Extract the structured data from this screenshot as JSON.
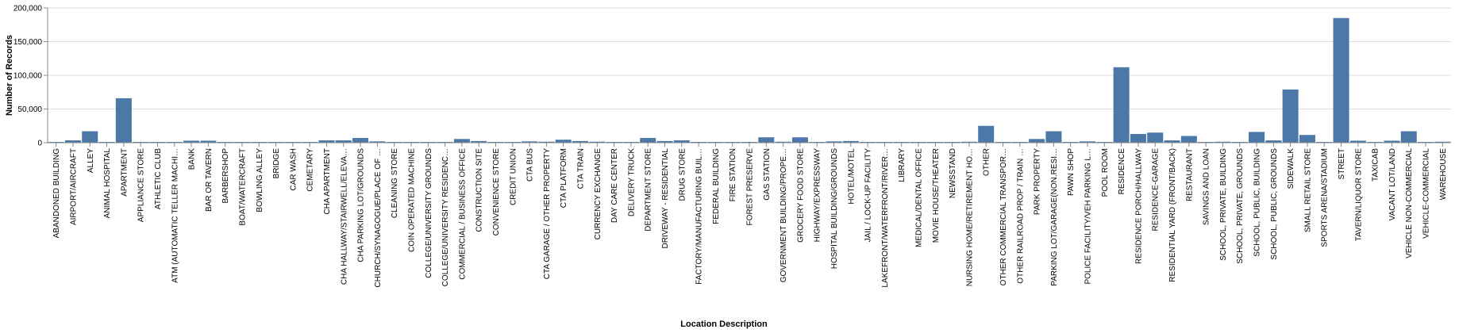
{
  "chart_data": {
    "type": "bar",
    "xlabel": "Location Description",
    "ylabel": "Number of Records",
    "ylim": [
      0,
      200000
    ],
    "yticks": [
      0,
      50000,
      100000,
      150000,
      200000
    ],
    "ytick_labels": [
      "0",
      "50,000",
      "100,000",
      "150,000",
      "200,000"
    ],
    "grid": true,
    "bar_color": "#4c78a8",
    "categories": [
      "ABANDONED BUILDING",
      "AIRPORT/AIRCRAFT",
      "ALLEY",
      "ANIMAL HOSPITAL",
      "APARTMENT",
      "APPLIANCE STORE",
      "ATHLETIC CLUB",
      "ATM (AUTOMATIC TELLER MACHI…",
      "BANK",
      "BAR OR TAVERN",
      "BARBERSHOP",
      "BOAT/WATERCRAFT",
      "BOWLING ALLEY",
      "BRIDGE",
      "CAR WASH",
      "CEMETARY",
      "CHA APARTMENT",
      "CHA HALLWAY/STAIRWELL/ELEVA…",
      "CHA PARKING LOT/GROUNDS",
      "CHURCH/SYNAGOGUE/PLACE OF …",
      "CLEANING STORE",
      "COIN OPERATED MACHINE",
      "COLLEGE/UNIVERSITY GROUNDS",
      "COLLEGE/UNIVERSITY RESIDENC…",
      "COMMERCIAL / BUSINESS OFFICE",
      "CONSTRUCTION SITE",
      "CONVENIENCE STORE",
      "CREDIT UNION",
      "CTA BUS",
      "CTA GARAGE / OTHER PROPERTY",
      "CTA PLATFORM",
      "CTA TRAIN",
      "CURRENCY EXCHANGE",
      "DAY CARE CENTER",
      "DELIVERY TRUCK",
      "DEPARTMENT STORE",
      "DRIVEWAY - RESIDENTIAL",
      "DRUG STORE",
      "FACTORY/MANUFACTURING BUIL…",
      "FEDERAL BUILDING",
      "FIRE STATION",
      "FOREST PRESERVE",
      "GAS STATION",
      "GOVERNMENT BUILDING/PROPE…",
      "GROCERY FOOD STORE",
      "HIGHWAY/EXPRESSWAY",
      "HOSPITAL BUILDING/GROUNDS",
      "HOTEL/MOTEL",
      "JAIL / LOCK-UP FACILITY",
      "LAKEFRONT/WATERFRONT/RIVER…",
      "LIBRARY",
      "MEDICAL/DENTAL OFFICE",
      "MOVIE HOUSE/THEATER",
      "NEWSSTAND",
      "NURSING HOME/RETIREMENT HO…",
      "OTHER",
      "OTHER COMMERCIAL TRANSPOR…",
      "OTHER RAILROAD PROP / TRAIN …",
      "PARK PROPERTY",
      "PARKING LOT/GARAGE(NON.RESI…",
      "PAWN SHOP",
      "POLICE FACILITY/VEH PARKING L…",
      "POOL ROOM",
      "RESIDENCE",
      "RESIDENCE PORCH/HALLWAY",
      "RESIDENCE-GARAGE",
      "RESIDENTIAL YARD (FRONT/BACK)",
      "RESTAURANT",
      "SAVINGS AND LOAN",
      "SCHOOL, PRIVATE, BUILDING",
      "SCHOOL, PRIVATE, GROUNDS",
      "SCHOOL, PUBLIC, BUILDING",
      "SCHOOL, PUBLIC, GROUNDS",
      "SIDEWALK",
      "SMALL RETAIL STORE",
      "SPORTS ARENA/STADIUM",
      "STREET",
      "TAVERN/LIQUOR STORE",
      "TAXICAB",
      "VACANT LOT/LAND",
      "VEHICLE NON-COMMERCIAL",
      "VEHICLE-COMMERCIAL",
      "WAREHOUSE"
    ],
    "values": [
      900,
      3500,
      17000,
      300,
      66000,
      300,
      500,
      1000,
      3000,
      3000,
      1000,
      200,
      200,
      300,
      600,
      100,
      3500,
      3500,
      7000,
      2000,
      1000,
      200,
      700,
      600,
      5500,
      2500,
      1200,
      300,
      2000,
      1500,
      4500,
      2500,
      1500,
      1000,
      500,
      7000,
      2500,
      3500,
      1200,
      300,
      300,
      200,
      8000,
      1500,
      8000,
      600,
      2000,
      2500,
      300,
      300,
      1000,
      1000,
      500,
      200,
      1500,
      25000,
      500,
      500,
      5500,
      17000,
      300,
      2000,
      200,
      112000,
      13000,
      15000,
      3500,
      10000,
      200,
      1500,
      1000,
      16000,
      3500,
      79000,
      11500,
      600,
      185000,
      3000,
      1000,
      3000,
      17000,
      1000,
      1500
    ]
  }
}
